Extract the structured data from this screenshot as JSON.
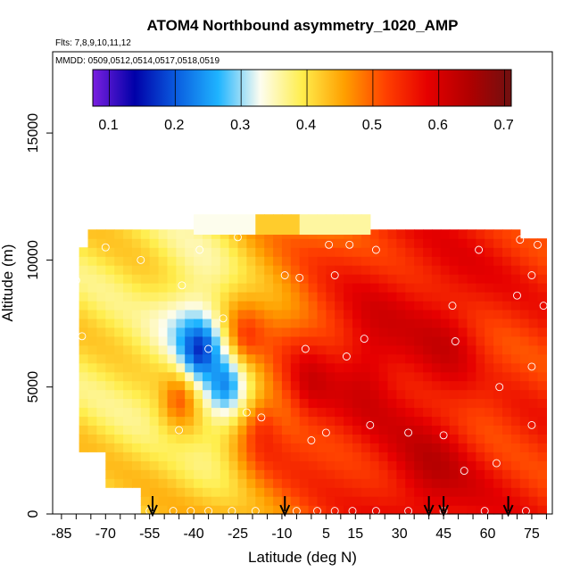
{
  "chart_data": {
    "type": "heatmap",
    "title": "ATOM4 Northbound asymmetry_1020_AMP",
    "subtitle_flights": "Flts: 7,8,9,10,11,12",
    "subtitle_dates": "MMDD: 0509,0512,0514,0517,0518,0519",
    "xlabel": "Latitude (deg N)",
    "ylabel": "Altitude (m)",
    "xlim": [
      -88,
      82
    ],
    "ylim": [
      0,
      18200
    ],
    "x_ticks": [
      -85,
      -70,
      -55,
      -40,
      -25,
      -10,
      5,
      15,
      30,
      45,
      60,
      75
    ],
    "x_tick_labels": [
      "-85",
      "-70",
      "-55",
      "-40",
      "-25",
      "-10",
      "5",
      "15",
      "30",
      "45",
      "60",
      "75"
    ],
    "y_ticks": [
      0,
      5000,
      10000,
      15000
    ],
    "y_tick_labels": [
      "0",
      "5000",
      "10000",
      "15000"
    ],
    "colorbar": {
      "min": 0.075,
      "max": 0.71,
      "ticks": [
        0.1,
        0.2,
        0.3,
        0.4,
        0.5,
        0.6,
        0.7
      ],
      "tick_labels": [
        "0.1",
        "0.2",
        "0.3",
        "0.4",
        "0.5",
        "0.6",
        "0.7"
      ],
      "stops": [
        "#7a1fe0",
        "#0000a8",
        "#0a5de0",
        "#1fb4ff",
        "#fdfdf0",
        "#ffee4d",
        "#ffa000",
        "#ff4000",
        "#e60000",
        "#b00000",
        "#701010"
      ]
    },
    "dropsonde_latitudes": [
      -54,
      -9,
      40,
      45,
      67
    ],
    "region_points": [
      {
        "lat": -62,
        "alt": 8500,
        "value": 0.4
      },
      {
        "lat": -55,
        "alt": 5000,
        "value": 0.38
      },
      {
        "lat": -45,
        "alt": 4500,
        "value": 0.5
      },
      {
        "lat": -38,
        "alt": 6500,
        "value": 0.15
      },
      {
        "lat": -30,
        "alt": 5000,
        "value": 0.22
      },
      {
        "lat": -22,
        "alt": 7000,
        "value": 0.52
      },
      {
        "lat": -15,
        "alt": 3500,
        "value": 0.55
      },
      {
        "lat": 0,
        "alt": 5000,
        "value": 0.6
      },
      {
        "lat": 20,
        "alt": 6000,
        "value": 0.62
      },
      {
        "lat": 45,
        "alt": 7000,
        "value": 0.6
      },
      {
        "lat": 62,
        "alt": 5000,
        "value": 0.52
      },
      {
        "lat": 40,
        "alt": 1500,
        "value": 0.62
      }
    ]
  }
}
